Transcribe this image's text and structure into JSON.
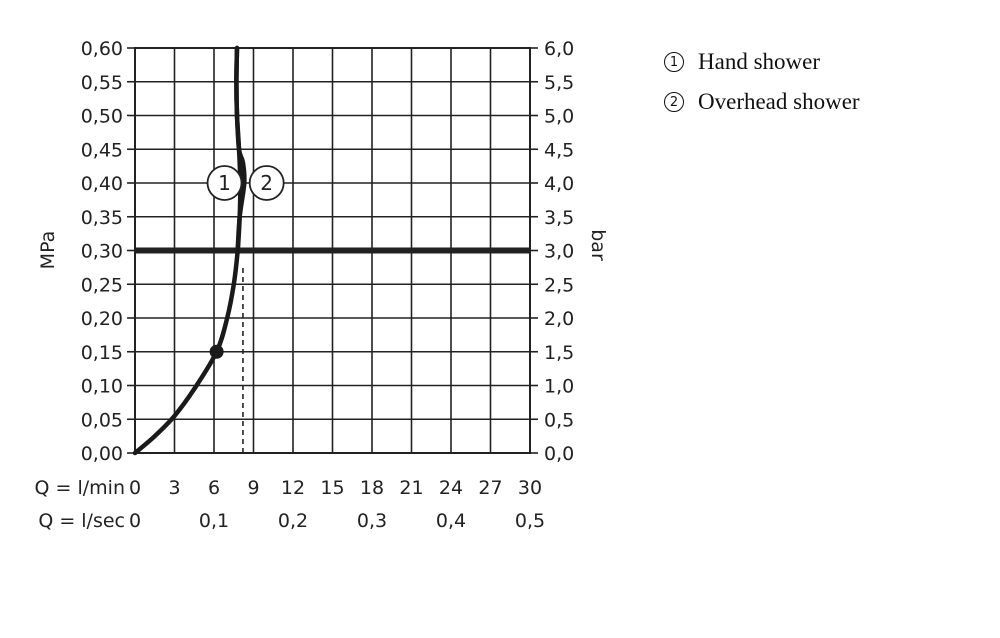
{
  "chart_data": {
    "type": "line",
    "ylabel_left": "MPa",
    "ylabel_right": "bar",
    "ylim": [
      0,
      0.6
    ],
    "y_left_ticks": [
      "0,00",
      "0,05",
      "0,10",
      "0,15",
      "0,20",
      "0,25",
      "0,30",
      "0,35",
      "0,40",
      "0,45",
      "0,50",
      "0,55",
      "0,60"
    ],
    "y_right_ticks": [
      "0,0",
      "0,5",
      "1,0",
      "1,5",
      "2,0",
      "2,5",
      "3,0",
      "3,5",
      "4,0",
      "4,5",
      "5,0",
      "5,5",
      "6,0"
    ],
    "xlim": [
      0,
      30
    ],
    "x_row1_label": "Q = l/min",
    "x_row1_ticks": [
      "0",
      "3",
      "6",
      "9",
      "12",
      "15",
      "18",
      "21",
      "24",
      "27",
      "30"
    ],
    "x_row2_label": "Q = l/sec",
    "x_row2_ticks": [
      "0",
      "0,1",
      "0,2",
      "0,3",
      "0,4",
      "0,5"
    ],
    "grid": true,
    "reference_line": {
      "y": 0.3
    },
    "series": [
      {
        "name": "1",
        "x": [
          0,
          1.5,
          3,
          4.5,
          6.2,
          7.0,
          7.5,
          7.8,
          7.95,
          8.0,
          7.9,
          7.75,
          7.7,
          7.75
        ],
        "y": [
          0,
          0.025,
          0.055,
          0.095,
          0.15,
          0.2,
          0.25,
          0.3,
          0.35,
          0.4,
          0.45,
          0.5,
          0.55,
          0.6
        ]
      },
      {
        "name": "2",
        "x": [
          7.8,
          7.95,
          8.3,
          8.2,
          7.9,
          7.75,
          7.7,
          7.75
        ],
        "y": [
          0.3,
          0.35,
          0.4,
          0.43,
          0.45,
          0.5,
          0.55,
          0.6
        ]
      }
    ],
    "marker_point": {
      "x": 6.2,
      "y": 0.15
    },
    "dashed_line": {
      "x": 8.2,
      "y_from": 0,
      "y_to": 0.28
    },
    "annotations": [
      {
        "text": "1",
        "series": "1",
        "x": 6.8,
        "y": 0.4
      },
      {
        "text": "2",
        "series": "2",
        "x": 10.0,
        "y": 0.4
      }
    ]
  },
  "legend": {
    "items": [
      {
        "marker": "1",
        "label": "Hand shower"
      },
      {
        "marker": "2",
        "label": "Overhead shower"
      }
    ]
  }
}
